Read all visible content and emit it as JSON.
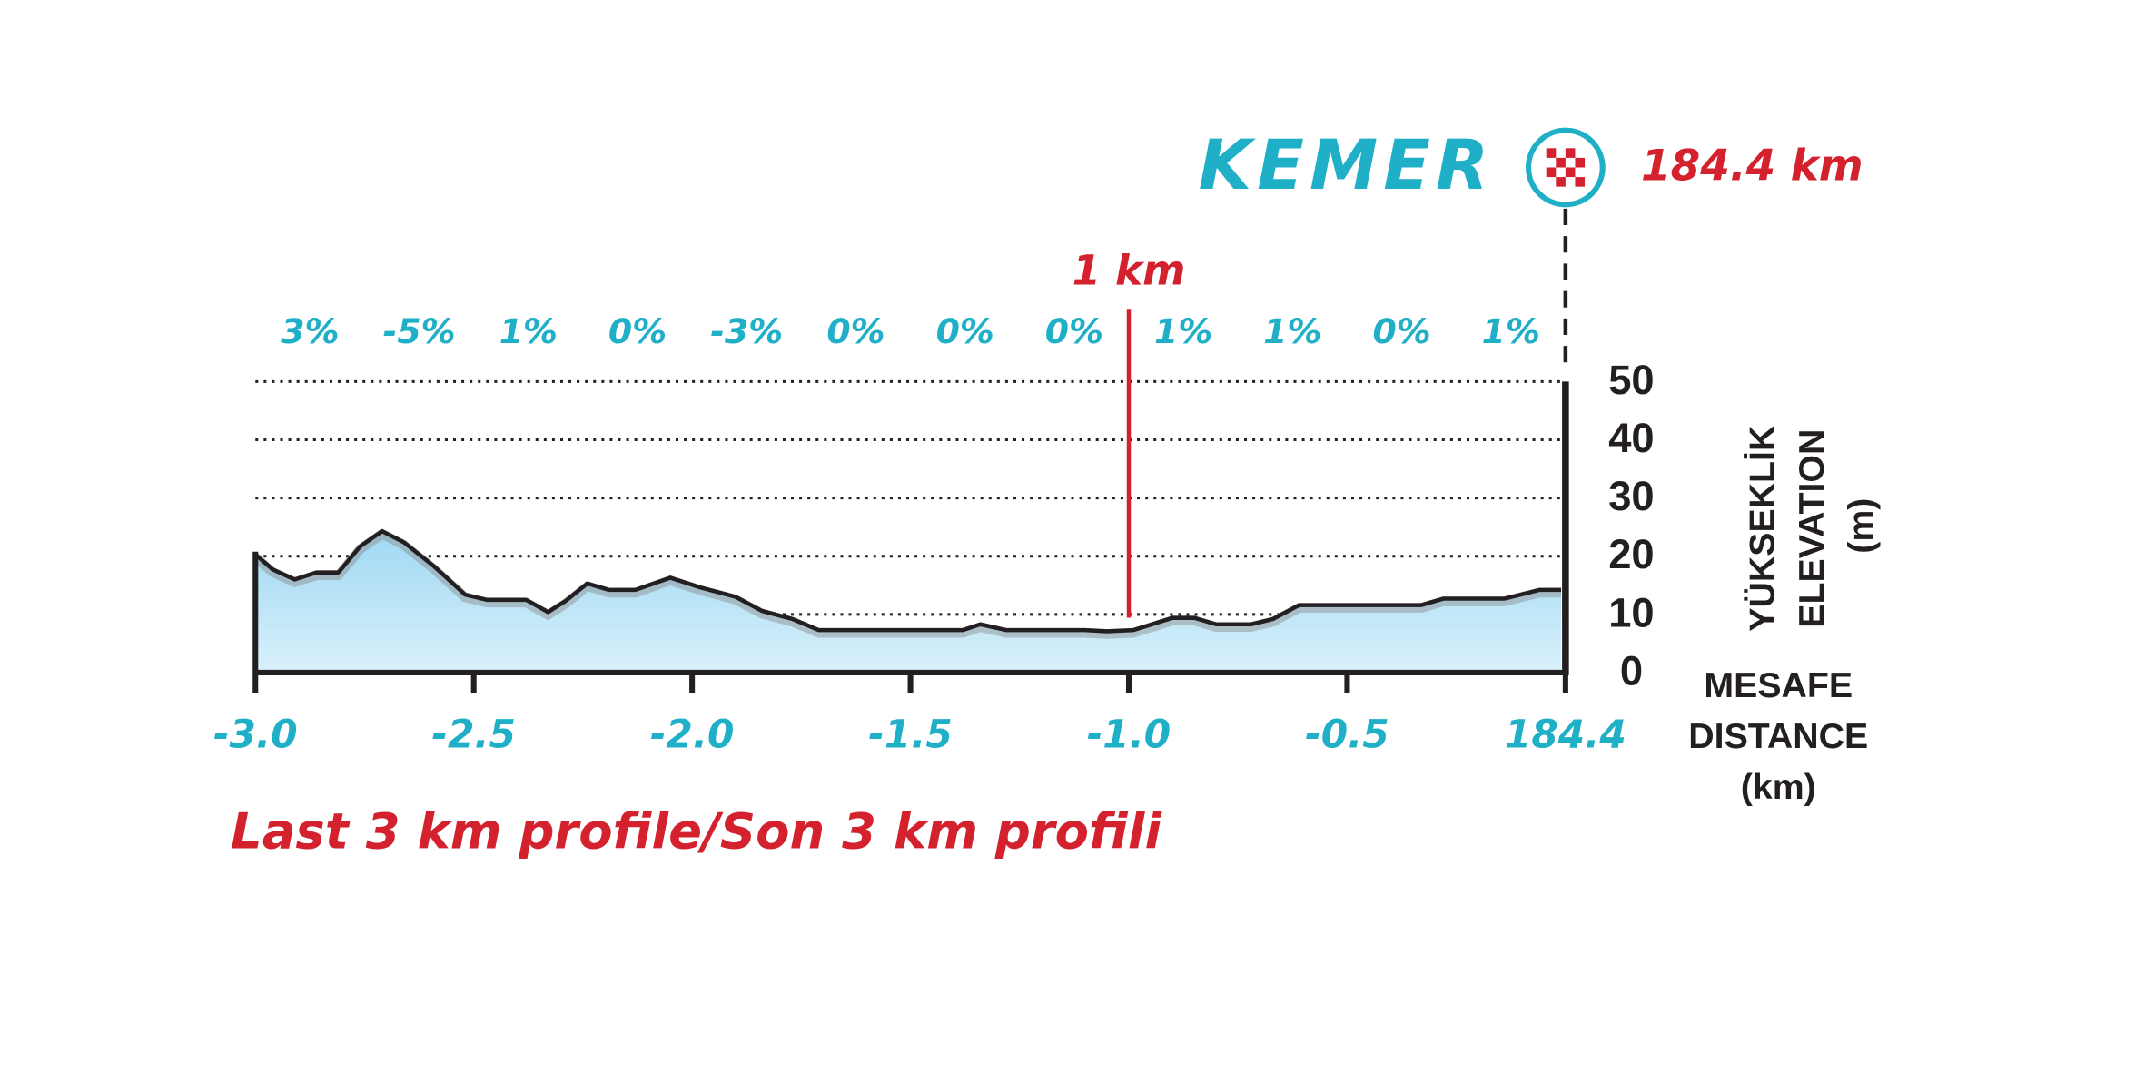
{
  "chart_data": {
    "type": "area",
    "title": "Last 3 km profile/Son 3 km profili",
    "finish": {
      "name": "KEMER",
      "distance": "184.4 km"
    },
    "marker": {
      "label": "1 km",
      "x": -1.0
    },
    "gradient_labels": [
      "3%",
      "-5%",
      "1%",
      "0%",
      "-3%",
      "0%",
      "0%",
      "0%",
      "1%",
      "1%",
      "0%",
      "1%"
    ],
    "y_axis_label": [
      "YÜKSEKLİK",
      "ELEVATION",
      "(m)"
    ],
    "x_axis_label": [
      "MESAFE",
      "DISTANCE",
      "(km)"
    ],
    "x": [
      -3.0,
      -2.96,
      -2.91,
      -2.86,
      -2.81,
      -2.76,
      -2.71,
      -2.66,
      -2.59,
      -2.52,
      -2.47,
      -2.38,
      -2.33,
      -2.29,
      -2.24,
      -2.19,
      -2.13,
      -2.05,
      -1.98,
      -1.9,
      -1.84,
      -1.77,
      -1.71,
      -1.38,
      -1.34,
      -1.28,
      -1.1,
      -1.05,
      -0.99,
      -0.9,
      -0.85,
      -0.8,
      -0.72,
      -0.67,
      -0.61,
      -0.33,
      -0.28,
      -0.14,
      -0.06,
      -0.01
    ],
    "values": [
      20.3,
      17.7,
      16.0,
      17.2,
      17.2,
      21.7,
      24.3,
      22.4,
      18.2,
      13.4,
      12.5,
      12.5,
      10.4,
      12.3,
      15.3,
      14.2,
      14.2,
      16.3,
      14.6,
      13.0,
      10.6,
      9.2,
      7.3,
      7.3,
      8.3,
      7.3,
      7.3,
      7.1,
      7.3,
      9.4,
      9.4,
      8.3,
      8.3,
      9.2,
      11.6,
      11.6,
      12.7,
      12.7,
      14.2,
      14.2
    ],
    "line_color": "#231f20",
    "fill_color": "#b3e1f6",
    "xlim": [
      -3.0,
      0
    ],
    "xticks": [
      {
        "value": -3.0,
        "label": "-3.0"
      },
      {
        "value": -2.5,
        "label": "-2.5"
      },
      {
        "value": -2.0,
        "label": "-2.0"
      },
      {
        "value": -1.5,
        "label": "-1.5"
      },
      {
        "value": -1.0,
        "label": "-1.0"
      },
      {
        "value": -0.5,
        "label": "-0.5"
      },
      {
        "value": 0,
        "label": "184.4"
      }
    ],
    "ylim": [
      0,
      50
    ],
    "yticks": [
      0,
      10,
      20,
      30,
      40,
      50
    ],
    "grid": true
  }
}
